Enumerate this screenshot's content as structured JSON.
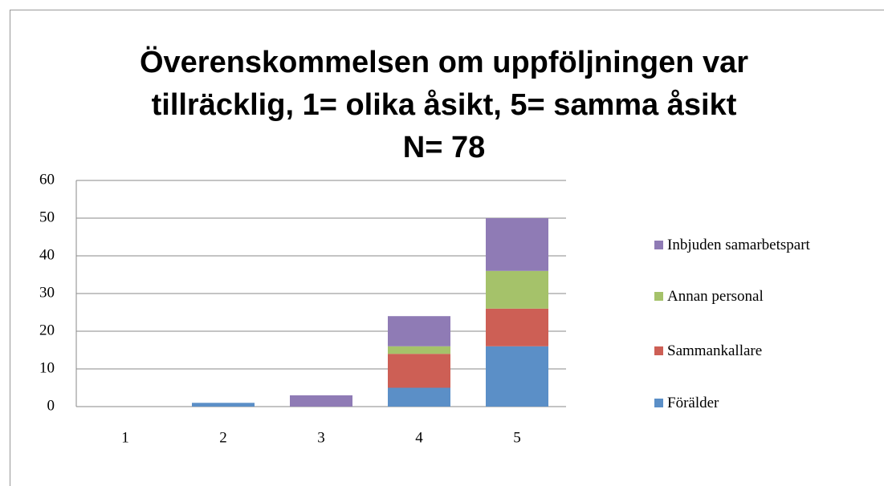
{
  "chart_data": {
    "type": "stacked_bar",
    "title": [
      "Överenskommelsen om uppföljningen var",
      "tillräcklig, 1= olika åsikt, 5= samma åsikt",
      "N= 78"
    ],
    "categories": [
      "1",
      "2",
      "3",
      "4",
      "5"
    ],
    "series": [
      {
        "name": "Förälder",
        "color": "#5b8fc7",
        "values": [
          0,
          1,
          0,
          5,
          16
        ]
      },
      {
        "name": "Sammankallare",
        "color": "#cd5f55",
        "values": [
          0,
          0,
          0,
          9,
          10
        ]
      },
      {
        "name": "Annan personal",
        "color": "#a5c26a",
        "values": [
          0,
          0,
          0,
          2,
          10
        ]
      },
      {
        "name": "Inbjuden samarbetspart",
        "color": "#8f7bb5",
        "values": [
          0,
          0,
          3,
          8,
          14
        ]
      }
    ],
    "ylim": [
      0,
      60
    ],
    "yticks": [
      0,
      10,
      20,
      30,
      40,
      50,
      60
    ],
    "grid": true,
    "legend": "right"
  }
}
